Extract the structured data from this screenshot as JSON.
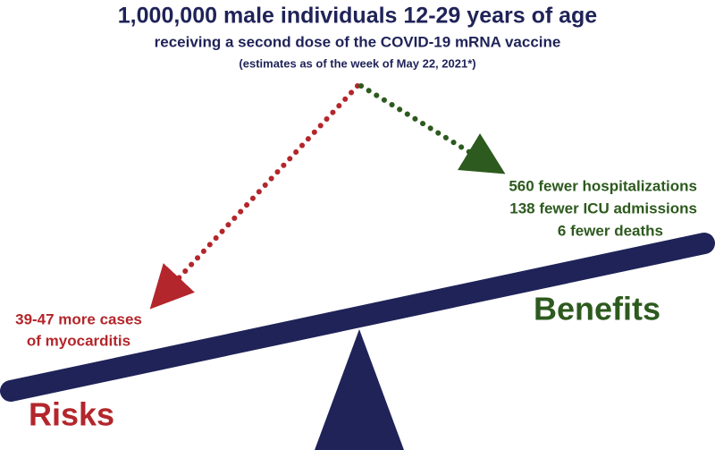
{
  "header": {
    "title": "1,000,000 male individuals 12-29 years of age",
    "subtitle": "receiving a second dose of the COVID-19 mRNA vaccine",
    "note": "(estimates as of the week of May 22, 2021*)"
  },
  "benefits": {
    "label": "Benefits",
    "items": [
      "560 fewer hospitalizations",
      "138 fewer ICU admissions",
      "6 fewer deaths"
    ]
  },
  "risks": {
    "label": "Risks",
    "items": [
      "39-47 more cases",
      "of myocarditis"
    ]
  }
}
